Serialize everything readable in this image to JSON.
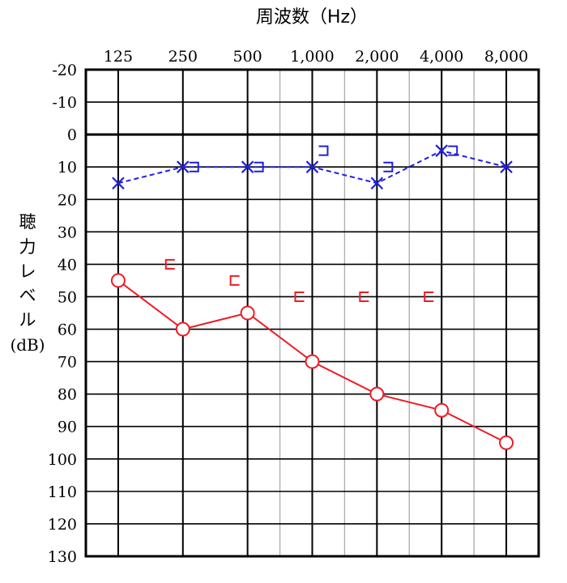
{
  "chart_data": {
    "type": "line",
    "title": "周波数（Hz）",
    "xlabel": "周波数（Hz）",
    "ylabel_chars": [
      "聴",
      "力",
      "レ",
      "ベ",
      "ル"
    ],
    "ylabel_unit": "(dB)",
    "x_tick_labels": [
      "125",
      "250",
      "500",
      "1,000",
      "2,000",
      "4,000",
      "8,000"
    ],
    "x_values_hz": [
      125,
      250,
      500,
      1000,
      2000,
      4000,
      8000
    ],
    "y_tick_labels": [
      "-20",
      "-10",
      "0",
      "10",
      "20",
      "30",
      "40",
      "50",
      "60",
      "70",
      "80",
      "90",
      "100",
      "110",
      "120",
      "130"
    ],
    "ylim": [
      -20,
      130
    ],
    "y_inverted": true,
    "grid": true,
    "series": [
      {
        "marker": "circle",
        "line": "solid",
        "color": "#ee1c25",
        "points": [
          {
            "x": 125,
            "y": 45
          },
          {
            "x": 250,
            "y": 60
          },
          {
            "x": 500,
            "y": 55
          },
          {
            "x": 1000,
            "y": 70
          },
          {
            "x": 2000,
            "y": 80
          },
          {
            "x": 4000,
            "y": 85
          },
          {
            "x": 8000,
            "y": 95
          }
        ]
      },
      {
        "marker": "cross",
        "line": "dashed",
        "color": "#1f1fe0",
        "points": [
          {
            "x": 125,
            "y": 15
          },
          {
            "x": 250,
            "y": 10
          },
          {
            "x": 500,
            "y": 10
          },
          {
            "x": 1000,
            "y": 10
          },
          {
            "x": 2000,
            "y": 15
          },
          {
            "x": 4000,
            "y": 5
          },
          {
            "x": 8000,
            "y": 10
          }
        ]
      },
      {
        "marker": "bracket-left",
        "line": "none",
        "color": "#ee1c25",
        "points": [
          {
            "x": 250,
            "y": 40
          },
          {
            "x": 500,
            "y": 45
          },
          {
            "x": 1000,
            "y": 50
          },
          {
            "x": 2000,
            "y": 50
          },
          {
            "x": 4000,
            "y": 50
          }
        ]
      },
      {
        "marker": "bracket-right",
        "line": "none",
        "color": "#1f1fe0",
        "points": [
          {
            "x": 250,
            "y": 10
          },
          {
            "x": 500,
            "y": 10
          },
          {
            "x": 1000,
            "y": 5
          },
          {
            "x": 2000,
            "y": 10
          },
          {
            "x": 4000,
            "y": 5
          }
        ]
      }
    ]
  }
}
